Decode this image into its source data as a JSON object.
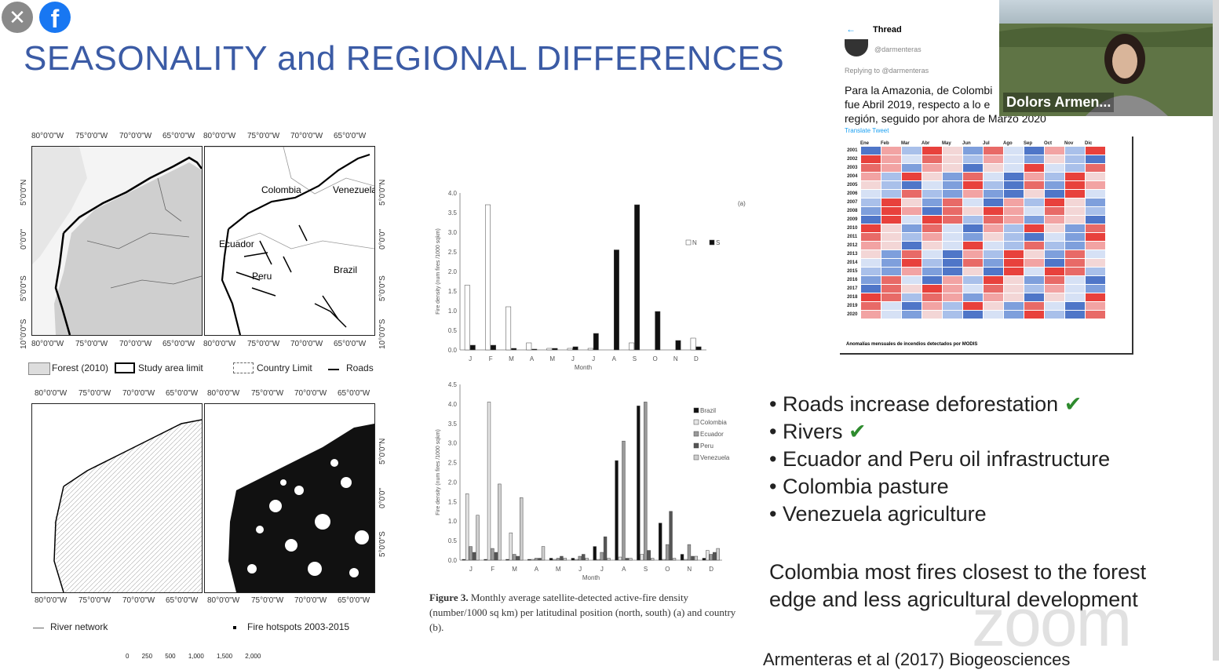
{
  "slide_title": "SEASONALITY and REGIONAL DIFFERENCES",
  "controls": {
    "close_icon": "close-icon",
    "fb_icon": "facebook-icon",
    "fb_glyph": "f",
    "close_glyph": "✕"
  },
  "maps": {
    "top_lon_labels": [
      "80°0'0\"W",
      "75°0'0\"W",
      "70°0'0\"W",
      "65°0'0\"W",
      "80°0'0\"W",
      "75°0'0\"W",
      "70°0'0\"W",
      "65°0'0\"W"
    ],
    "top_lon_bottom_labels": [
      "80°0'0\"W",
      "75°0'0\"W",
      "70°0'0\"W",
      "65°0'0\"W",
      "80°0'0\"W",
      "75°0'0\"W",
      "70°0'0\"W",
      "65°0'0\"W"
    ],
    "bottom_lon_labels": [
      "80°0'0\"W",
      "75°0'0\"W",
      "70°0'0\"W",
      "65°0'0\"W",
      "80°0'0\"W",
      "75°0'0\"W",
      "70°0'0\"W",
      "65°0'0\"W"
    ],
    "lat_labels": [
      "5°0'0\"N",
      "0°0'0\"",
      "5°0'0\"S",
      "10°0'0\"S"
    ],
    "lat_labels_right": [
      "5°0'0\"N",
      "0°0'0\"",
      "5°0'0\"S",
      "10°0'0\"S"
    ],
    "lat_labels_bottom": [
      "5°0'0\"N",
      "0°0'0\"",
      "5°0'0\"S"
    ],
    "country_labels": {
      "colombia": "Colombia",
      "venezuela": "Venezuela",
      "ecuador": "Ecuador",
      "peru": "Peru",
      "brazil": "Brazil"
    },
    "legend_top": {
      "forest": "Forest (2010)",
      "study": "Study area limit",
      "country": "Country Limit",
      "roads": "Roads"
    },
    "legend_bottom": {
      "rivers": "River network",
      "fire": "Fire hotspots 2003-2015"
    },
    "scale_bar": "0 250 500 1,000 1,500 2,000"
  },
  "chart_data": [
    {
      "type": "bar",
      "panel_label": "(a)",
      "categories": [
        "J",
        "F",
        "M",
        "A",
        "M",
        "J",
        "J",
        "A",
        "S",
        "O",
        "N",
        "D"
      ],
      "series": [
        {
          "name": "N",
          "values": [
            1.65,
            3.7,
            1.1,
            0.18,
            0.04,
            0.04,
            0.04,
            0.0,
            0.18,
            0.0,
            0.0,
            0.3
          ]
        },
        {
          "name": "S",
          "values": [
            0.12,
            0.12,
            0.04,
            0.02,
            0.04,
            0.08,
            0.42,
            2.55,
            3.7,
            0.98,
            0.24,
            0.08
          ]
        }
      ],
      "ylim": [
        0,
        4.0
      ],
      "yticks": [
        "0.0",
        "0.5",
        "1.0",
        "1.5",
        "2.0",
        "2.5",
        "3.0",
        "3.5",
        "4.0"
      ],
      "xlabel": "Month",
      "ylabel": "Fire density (num fires /1000 sqkm)",
      "colors": {
        "N": "#ffffff",
        "S": "#111111"
      }
    },
    {
      "type": "bar",
      "panel_label": "(b)",
      "categories": [
        "J",
        "F",
        "M",
        "A",
        "M",
        "J",
        "J",
        "A",
        "S",
        "O",
        "N",
        "D"
      ],
      "series": [
        {
          "name": "Brazil",
          "values": [
            0.02,
            0.02,
            0.02,
            0.02,
            0.05,
            0.05,
            0.35,
            2.55,
            3.95,
            0.95,
            0.15,
            0.05
          ]
        },
        {
          "name": "Colombia",
          "values": [
            1.7,
            4.05,
            0.7,
            0.02,
            0.02,
            0.02,
            0.02,
            0.08,
            0.15,
            0.02,
            0.02,
            0.25
          ]
        },
        {
          "name": "Ecuador",
          "values": [
            0.35,
            0.3,
            0.15,
            0.05,
            0.05,
            0.1,
            0.2,
            3.05,
            4.05,
            0.4,
            0.4,
            0.15
          ]
        },
        {
          "name": "Peru",
          "values": [
            0.2,
            0.2,
            0.1,
            0.05,
            0.1,
            0.15,
            0.6,
            0.05,
            0.25,
            1.25,
            0.1,
            0.2
          ]
        },
        {
          "name": "Venezuela",
          "values": [
            1.15,
            1.95,
            1.6,
            0.35,
            0.05,
            0.05,
            0.05,
            0.05,
            0.05,
            0.05,
            0.1,
            0.3
          ]
        }
      ],
      "ylim": [
        0,
        4.5
      ],
      "yticks": [
        "0.0",
        "0.5",
        "1.0",
        "1.5",
        "2.0",
        "2.5",
        "3.0",
        "3.5",
        "4.0",
        "4.5"
      ],
      "xlabel": "Month",
      "ylabel": "Fire density (num fires /1000 sqkm)",
      "colors": {
        "Brazil": "#111111",
        "Colombia": "#e6e6e6",
        "Ecuador": "#9a9a9a",
        "Peru": "#555555",
        "Venezuela": "#cfcfcf"
      }
    }
  ],
  "caption": {
    "figure": "Figure 3.",
    "text": "Monthly average satellite-detected active-fire density (number/1000 sq km) per latitudinal position (north, south) (a) and country (b)."
  },
  "tweet": {
    "back_icon": "←",
    "header": "Thread",
    "handle": "@darmenteras",
    "replying": "Replying to @darmenteras",
    "text_lines": [
      "Para la Amazonia, de Colombi",
      "fue Abril 2019, respecto a lo e",
      "región, seguido por ahora de Marzo 2020"
    ],
    "translate": "Translate Tweet",
    "heatmap_caption": "Anomalías mensuales de incendios detectados por MODIS",
    "months": [
      "Ene",
      "Feb",
      "Mar",
      "Abr",
      "May",
      "Jun",
      "Jul",
      "Ago",
      "Sep",
      "Oct",
      "Nov",
      "Dic"
    ],
    "years": [
      "2001",
      "2002",
      "2003",
      "2004",
      "2005",
      "2006",
      "2007",
      "2008",
      "2009",
      "2010",
      "2011",
      "2012",
      "2013",
      "2014",
      "2015",
      "2016",
      "2017",
      "2018",
      "2019",
      "2020"
    ]
  },
  "bullets": [
    {
      "text": "Roads increase deforestation",
      "check": true
    },
    {
      "text": "Rivers",
      "check": true
    },
    {
      "text": "Ecuador and Peru oil infrastructure",
      "check": false
    },
    {
      "text": "Colombia pasture",
      "check": false
    },
    {
      "text": "Venezuela agriculture",
      "check": false
    }
  ],
  "check_glyph": "✔",
  "bullet_glyph": "•",
  "note": "Colombia most fires closest to the forest edge and less agricultural development",
  "video": {
    "name": "Dolors Armen..."
  },
  "watermark": "zoom",
  "citation": "Armenteras et al (2017) Biogeosciences",
  "accent_colors": {
    "title": "#3b5ba5",
    "check": "#2e8b2e",
    "heat_red": "#e8413c",
    "heat_blue": "#5b7fd0"
  }
}
